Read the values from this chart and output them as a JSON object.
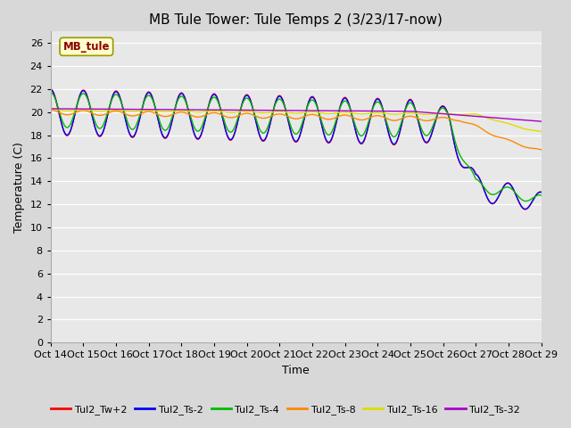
{
  "title": "MB Tule Tower: Tule Temps 2 (3/23/17-now)",
  "xlabel": "Time",
  "ylabel": "Temperature (C)",
  "ylim": [
    0,
    27
  ],
  "yticks": [
    0,
    2,
    4,
    6,
    8,
    10,
    12,
    14,
    16,
    18,
    20,
    22,
    24,
    26
  ],
  "plot_bg_color": "#e8e8e8",
  "fig_bg_color": "#d8d8d8",
  "series": [
    {
      "label": "Tul2_Tw+2",
      "color": "#ff0000"
    },
    {
      "label": "Tul2_Ts-2",
      "color": "#0000ff"
    },
    {
      "label": "Tul2_Ts-4",
      "color": "#00bb00"
    },
    {
      "label": "Tul2_Ts-8",
      "color": "#ff8800"
    },
    {
      "label": "Tul2_Ts-16",
      "color": "#dddd00"
    },
    {
      "label": "Tul2_Ts-32",
      "color": "#aa00cc"
    }
  ],
  "x_tick_labels": [
    "Oct 14",
    "Oct 15",
    "Oct 16",
    "Oct 17",
    "Oct 18",
    "Oct 19",
    "Oct 20",
    "Oct 21",
    "Oct 22",
    "Oct 23",
    "Oct 24",
    "Oct 25",
    "Oct 26",
    "Oct 27",
    "Oct 28",
    "Oct 29"
  ],
  "station_label": "MB_tule",
  "station_box_color": "#ffffcc",
  "station_box_edge": "#999900",
  "station_text_color": "#880000",
  "n_days": 15,
  "pts_per_day": 48
}
